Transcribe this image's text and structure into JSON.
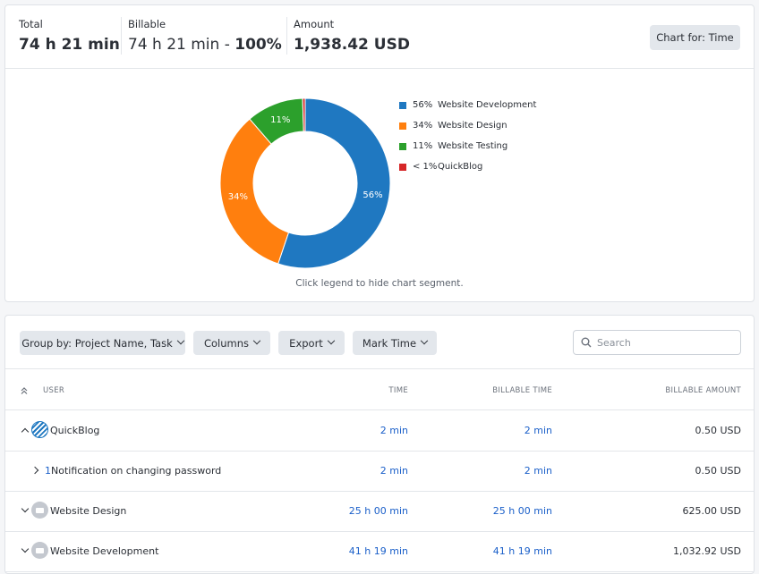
{
  "summary": {
    "total_label": "Total",
    "total_value": "74 h 21 min",
    "billable_label": "Billable",
    "billable_value": "74 h 21 min -",
    "billable_pct": "100%",
    "amount_label": "Amount",
    "amount_value": "1,938.42 USD",
    "chart_for_button": "Chart for: Time"
  },
  "chart_data": {
    "type": "pie",
    "categories": [
      "Website Development",
      "Website Design",
      "Website Testing",
      "QuickBlog"
    ],
    "values": [
      56,
      34,
      11,
      0.5
    ],
    "value_labels": [
      "56%",
      "34%",
      "11%",
      "< 1%"
    ],
    "colors": [
      "#1f78c1",
      "#ff7f0e",
      "#2ca02c",
      "#d62728"
    ],
    "legend": "right",
    "hint": "Click legend to hide chart segment."
  },
  "toolbar": {
    "group_by": "Group by: Project Name, Task",
    "columns": "Columns",
    "export": "Export",
    "mark_time": "Mark Time",
    "search_placeholder": "Search"
  },
  "table": {
    "headers": {
      "user": "USER",
      "time": "TIME",
      "billable_time": "BILLABLE TIME",
      "billable_amount": "BILLABLE AMOUNT"
    },
    "rows": [
      {
        "name": "QuickBlog",
        "time": "2 min",
        "billable_time": "2 min",
        "amount": "0.50 USD"
      },
      {
        "prefix": "1",
        "name": "Notification on changing password",
        "time": "2 min",
        "billable_time": "2 min",
        "amount": "0.50 USD"
      },
      {
        "name": "Website Design",
        "time": "25 h 00 min",
        "billable_time": "25 h 00 min",
        "amount": "625.00 USD"
      },
      {
        "name": "Website Development",
        "time": "41 h 19 min",
        "billable_time": "41 h 19 min",
        "amount": "1,032.92 USD"
      }
    ]
  }
}
